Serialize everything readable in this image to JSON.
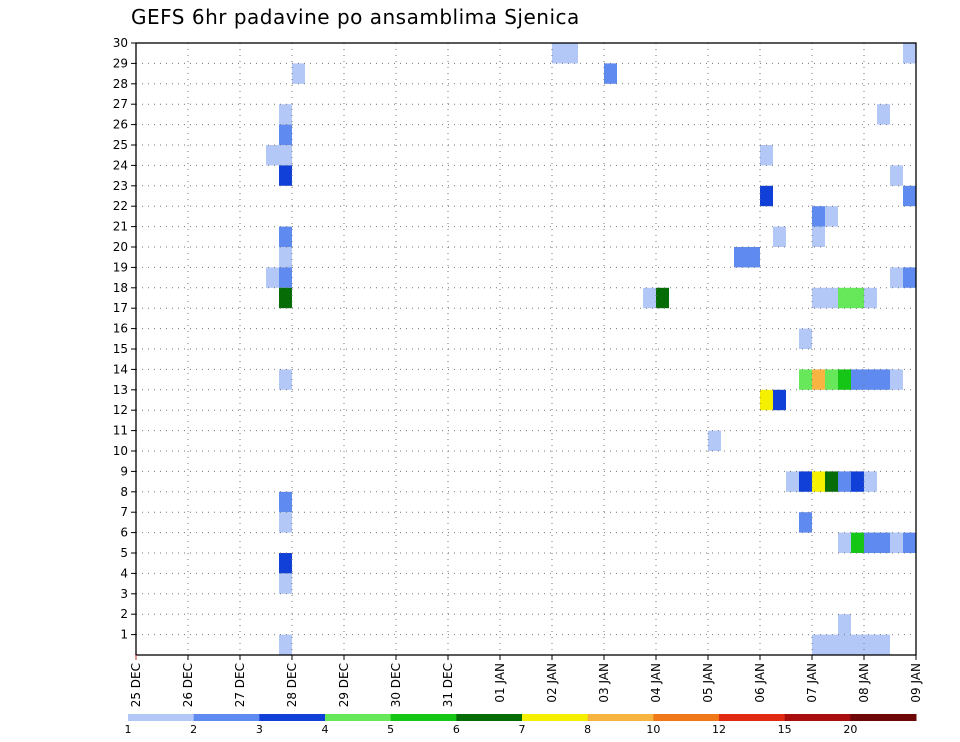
{
  "chart_data": {
    "type": "heatmap",
    "title": "GEFS 6hr padavine po ansamblima Sjenica",
    "xlabel": "",
    "ylabel": "",
    "y_tick_labels": [
      "1",
      "2",
      "3",
      "4",
      "5",
      "6",
      "7",
      "8",
      "9",
      "10",
      "11",
      "12",
      "13",
      "14",
      "15",
      "16",
      "17",
      "18",
      "19",
      "20",
      "21",
      "22",
      "23",
      "24",
      "25",
      "26",
      "27",
      "28",
      "29",
      "30"
    ],
    "x_tick_labels": [
      "25 DEC",
      "26 DEC",
      "27 DEC",
      "28 DEC",
      "29 DEC",
      "30 DEC",
      "31 DEC",
      "01 JAN",
      "02 JAN",
      "03 JAN",
      "04 JAN",
      "05 JAN",
      "06 JAN",
      "07 JAN",
      "08 JAN",
      "09 JAN"
    ],
    "x_range_days": [
      0,
      15
    ],
    "y_range": [
      0,
      30
    ],
    "grid": true,
    "legend_position": "bottom",
    "legend_levels": [
      "1",
      "2",
      "3",
      "4",
      "5",
      "6",
      "7",
      "8",
      "10",
      "12",
      "15",
      "20"
    ],
    "legend_colors": [
      "#b4c8f8",
      "#5f8aef",
      "#1040d8",
      "#66e85a",
      "#16c616",
      "#066d06",
      "#f5ef00",
      "#f7b440",
      "#f07818",
      "#e02a12",
      "#a80e0e",
      "#6e0707"
    ],
    "cells": [
      [
        2.75,
        0,
        1
      ],
      [
        2.75,
        19,
        1
      ],
      [
        2.75,
        20,
        2
      ],
      [
        2.75,
        26,
        1
      ],
      [
        2.75,
        25,
        2
      ],
      [
        2.75,
        24,
        1
      ],
      [
        2.5,
        24,
        1
      ],
      [
        2.75,
        23,
        3
      ],
      [
        2.75,
        18,
        2
      ],
      [
        2.5,
        18,
        1
      ],
      [
        2.75,
        17,
        6
      ],
      [
        2.75,
        13,
        1
      ],
      [
        2.75,
        7,
        2
      ],
      [
        2.75,
        6,
        1
      ],
      [
        2.75,
        4,
        3
      ],
      [
        2.75,
        3,
        1
      ],
      [
        3.0,
        28,
        1
      ],
      [
        8.0,
        29,
        1
      ],
      [
        8.25,
        29,
        1
      ],
      [
        9.0,
        28,
        2
      ],
      [
        9.75,
        17,
        1
      ],
      [
        10.0,
        17,
        6
      ],
      [
        11.0,
        10,
        1
      ],
      [
        11.5,
        19,
        2
      ],
      [
        11.75,
        19,
        2
      ],
      [
        12.0,
        24,
        1
      ],
      [
        12.0,
        22,
        3
      ],
      [
        12.0,
        12,
        7
      ],
      [
        12.25,
        12,
        3
      ],
      [
        12.25,
        20,
        1
      ],
      [
        12.75,
        15,
        1
      ],
      [
        12.75,
        13,
        4
      ],
      [
        13.0,
        13,
        8
      ],
      [
        13.25,
        13,
        4
      ],
      [
        13.5,
        13,
        5
      ],
      [
        13.75,
        13,
        2
      ],
      [
        14.0,
        13,
        2
      ],
      [
        14.25,
        13,
        2
      ],
      [
        14.5,
        13,
        1
      ],
      [
        12.5,
        8,
        1
      ],
      [
        12.75,
        8,
        3
      ],
      [
        13.0,
        8,
        7
      ],
      [
        13.25,
        8,
        6
      ],
      [
        13.5,
        8,
        2
      ],
      [
        13.75,
        8,
        3
      ],
      [
        14.0,
        8,
        1
      ],
      [
        12.75,
        6,
        2
      ],
      [
        13.0,
        21,
        2
      ],
      [
        13.25,
        21,
        1
      ],
      [
        13.0,
        20,
        1
      ],
      [
        13.0,
        17,
        1
      ],
      [
        13.25,
        17,
        1
      ],
      [
        13.5,
        17,
        4
      ],
      [
        13.75,
        17,
        4
      ],
      [
        14.0,
        17,
        1
      ],
      [
        13.5,
        5,
        1
      ],
      [
        13.75,
        5,
        5
      ],
      [
        14.0,
        5,
        2
      ],
      [
        14.25,
        5,
        2
      ],
      [
        14.5,
        5,
        1
      ],
      [
        14.75,
        5,
        2
      ],
      [
        13.0,
        0,
        1
      ],
      [
        13.25,
        0,
        1
      ],
      [
        13.5,
        0,
        1
      ],
      [
        13.75,
        0,
        1
      ],
      [
        14.0,
        0,
        1
      ],
      [
        14.25,
        0,
        1
      ],
      [
        13.5,
        1,
        1
      ],
      [
        14.25,
        26,
        1
      ],
      [
        14.5,
        23,
        1
      ],
      [
        14.75,
        22,
        2
      ],
      [
        14.5,
        18,
        1
      ],
      [
        14.75,
        18,
        2
      ],
      [
        14.75,
        29,
        1
      ]
    ]
  }
}
